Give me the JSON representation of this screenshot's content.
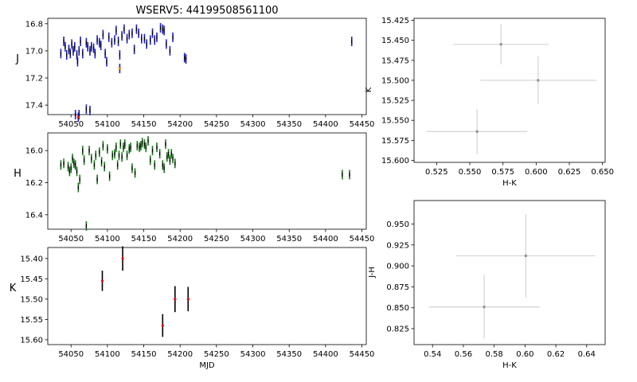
{
  "figure": {
    "title": "WSERV5: 44199508561100"
  },
  "chart_data": [
    {
      "id": "j_light_curve",
      "type": "scatter",
      "ylabel": "J",
      "xlabel": "",
      "xlim": [
        54018,
        54456
      ],
      "ylim": [
        17.47,
        16.76
      ],
      "y_inverted": true,
      "xticks": [
        54050,
        54100,
        54150,
        54200,
        54250,
        54300,
        54350,
        54400,
        54450
      ],
      "yticks": [
        16.8,
        17.0,
        17.2,
        17.4
      ],
      "point_color": "#1f1fd0",
      "errbar_color": "#1f1fd0",
      "points": [
        [
          54036,
          17.02
        ],
        [
          54040,
          16.93
        ],
        [
          54042,
          16.97
        ],
        [
          54044,
          17.03
        ],
        [
          54047,
          16.99
        ],
        [
          54049,
          17.02
        ],
        [
          54051,
          16.95
        ],
        [
          54053,
          17.0
        ],
        [
          54055,
          16.97
        ],
        [
          54058,
          17.03
        ],
        [
          54059,
          17.08
        ],
        [
          54061,
          17.0
        ],
        [
          54063,
          16.93
        ],
        [
          54066,
          17.02
        ],
        [
          54071,
          16.94
        ],
        [
          54073,
          16.97
        ],
        [
          54076,
          17.0
        ],
        [
          54078,
          16.97
        ],
        [
          54081,
          16.98
        ],
        [
          54083,
          17.02
        ],
        [
          54086,
          16.92
        ],
        [
          54089,
          16.94
        ],
        [
          54091,
          16.96
        ],
        [
          54094,
          16.88
        ],
        [
          54097,
          17.02
        ],
        [
          54099,
          17.08
        ],
        [
          54102,
          16.9
        ],
        [
          54106,
          16.94
        ],
        [
          54110,
          16.92
        ],
        [
          54112,
          16.85
        ],
        [
          54115,
          16.93
        ],
        [
          54117,
          17.03
        ],
        [
          54120,
          16.89
        ],
        [
          54123,
          16.84
        ],
        [
          54127,
          16.91
        ],
        [
          54130,
          16.88
        ],
        [
          54134,
          16.87
        ],
        [
          54137,
          16.99
        ],
        [
          54140,
          16.84
        ],
        [
          54143,
          16.87
        ],
        [
          54147,
          16.91
        ],
        [
          54151,
          16.91
        ],
        [
          54154,
          16.95
        ],
        [
          54159,
          16.92
        ],
        [
          54162,
          16.87
        ],
        [
          54165,
          16.92
        ],
        [
          54168,
          16.9
        ],
        [
          54173,
          16.83
        ],
        [
          54176,
          16.84
        ],
        [
          54178,
          16.85
        ],
        [
          54181,
          16.95
        ],
        [
          54186,
          17.0
        ],
        [
          54190,
          16.9
        ],
        [
          54206,
          17.05
        ],
        [
          54208,
          17.06
        ],
        [
          54056,
          17.47
        ],
        [
          54061,
          17.47
        ],
        [
          54071,
          17.43
        ],
        [
          54076,
          17.44
        ],
        [
          54436,
          16.93
        ],
        [
          54060,
          17.49
        ],
        [
          54117,
          17.13
        ]
      ],
      "highlight_points": [
        [
          54060,
          17.49,
          "#ff0000"
        ],
        [
          54117,
          17.13,
          "#ff8c00"
        ]
      ]
    },
    {
      "id": "h_light_curve",
      "type": "scatter",
      "ylabel": "H",
      "xlabel": "",
      "xlim": [
        54018,
        54456
      ],
      "ylim": [
        16.49,
        15.89
      ],
      "y_inverted": true,
      "xticks": [
        54050,
        54100,
        54150,
        54200,
        54250,
        54300,
        54350,
        54400,
        54450
      ],
      "yticks": [
        16.0,
        16.2,
        16.4
      ],
      "point_color": "#1a7a1a",
      "errbar_color": "#1a7a1a",
      "points": [
        [
          54036,
          16.09
        ],
        [
          54040,
          16.08
        ],
        [
          54046,
          16.1
        ],
        [
          54048,
          16.13
        ],
        [
          54050,
          16.11
        ],
        [
          54052,
          16.05
        ],
        [
          54054,
          16.08
        ],
        [
          54056,
          16.09
        ],
        [
          54058,
          16.13
        ],
        [
          54060,
          16.23
        ],
        [
          54062,
          16.18
        ],
        [
          54066,
          16.0
        ],
        [
          54068,
          16.06
        ],
        [
          54071,
          16.47
        ],
        [
          54075,
          16.0
        ],
        [
          54078,
          16.05
        ],
        [
          54082,
          16.09
        ],
        [
          54084,
          16.03
        ],
        [
          54086,
          16.18
        ],
        [
          54089,
          16.01
        ],
        [
          54092,
          16.07
        ],
        [
          54094,
          15.97
        ],
        [
          54096,
          16.1
        ],
        [
          54100,
          15.99
        ],
        [
          54103,
          16.16
        ],
        [
          54107,
          16.03
        ],
        [
          54110,
          16.02
        ],
        [
          54112,
          15.98
        ],
        [
          54114,
          16.09
        ],
        [
          54116,
          16.03
        ],
        [
          54118,
          15.96
        ],
        [
          54120,
          16.04
        ],
        [
          54122,
          15.98
        ],
        [
          54124,
          15.96
        ],
        [
          54127,
          16.03
        ],
        [
          54130,
          15.99
        ],
        [
          54132,
          15.98
        ],
        [
          54134,
          16.11
        ],
        [
          54138,
          16.14
        ],
        [
          54141,
          15.97
        ],
        [
          54144,
          15.98
        ],
        [
          54146,
          15.97
        ],
        [
          54148,
          15.95
        ],
        [
          54151,
          15.96
        ],
        [
          54153,
          15.98
        ],
        [
          54156,
          15.94
        ],
        [
          54159,
          16.06
        ],
        [
          54162,
          16.0
        ],
        [
          54165,
          16.09
        ],
        [
          54168,
          15.98
        ],
        [
          54172,
          16.02
        ],
        [
          54176,
          16.09
        ],
        [
          54178,
          16.11
        ],
        [
          54180,
          15.96
        ],
        [
          54182,
          16.04
        ],
        [
          54184,
          16.02
        ],
        [
          54186,
          16.06
        ],
        [
          54188,
          16.02
        ],
        [
          54190,
          16.05
        ],
        [
          54193,
          16.08
        ],
        [
          54423,
          16.15
        ],
        [
          54433,
          16.15
        ]
      ],
      "highlight_points": []
    },
    {
      "id": "k_light_curve",
      "type": "scatter",
      "ylabel": "K",
      "xlabel": "MJD",
      "xlim": [
        54018,
        54456
      ],
      "ylim": [
        15.612,
        15.373
      ],
      "y_inverted": true,
      "xticks": [
        54050,
        54100,
        54150,
        54200,
        54250,
        54300,
        54350,
        54400,
        54450
      ],
      "yticks": [
        15.4,
        15.45,
        15.5,
        15.55,
        15.6
      ],
      "point_color": "#ff0000",
      "errbar_color": "#000000",
      "points": [
        [
          54093,
          15.455,
          0.025
        ],
        [
          54121,
          15.4,
          0.03
        ],
        [
          54176,
          15.565,
          0.028
        ],
        [
          54193,
          15.5,
          0.032
        ],
        [
          54211,
          15.5,
          0.03
        ]
      ],
      "highlight_points": []
    },
    {
      "id": "k_vs_hk",
      "type": "scatter",
      "xlabel": "H-K",
      "ylabel": "K",
      "xlim": [
        0.508,
        0.652
      ],
      "ylim": [
        15.6025,
        15.4225
      ],
      "y_inverted": true,
      "xticks": [
        0.525,
        0.55,
        0.575,
        0.6,
        0.625,
        0.65
      ],
      "yticks": [
        15.425,
        15.45,
        15.475,
        15.5,
        15.525,
        15.55,
        15.575,
        15.6
      ],
      "point_color": "#999999",
      "errbar_color": "#d3d3d3",
      "points": [
        [
          0.5735,
          15.455,
          0.036,
          0.025
        ],
        [
          0.6015,
          15.5,
          0.044,
          0.03
        ],
        [
          0.5555,
          15.564,
          0.038,
          0.028
        ]
      ],
      "highlight_points": []
    },
    {
      "id": "jh_vs_hk",
      "type": "scatter",
      "xlabel": "H-K",
      "ylabel": "J-H",
      "xlim": [
        0.528,
        0.652
      ],
      "ylim": [
        0.806,
        0.978
      ],
      "y_inverted": false,
      "xticks": [
        0.54,
        0.56,
        0.58,
        0.6,
        0.62,
        0.64
      ],
      "yticks": [
        0.825,
        0.85,
        0.875,
        0.9,
        0.925,
        0.95
      ],
      "point_color": "#999999",
      "errbar_color": "#d3d3d3",
      "points": [
        [
          0.6005,
          0.912,
          0.045,
          0.05
        ],
        [
          0.5735,
          0.851,
          0.036,
          0.038
        ]
      ],
      "highlight_points": []
    }
  ]
}
